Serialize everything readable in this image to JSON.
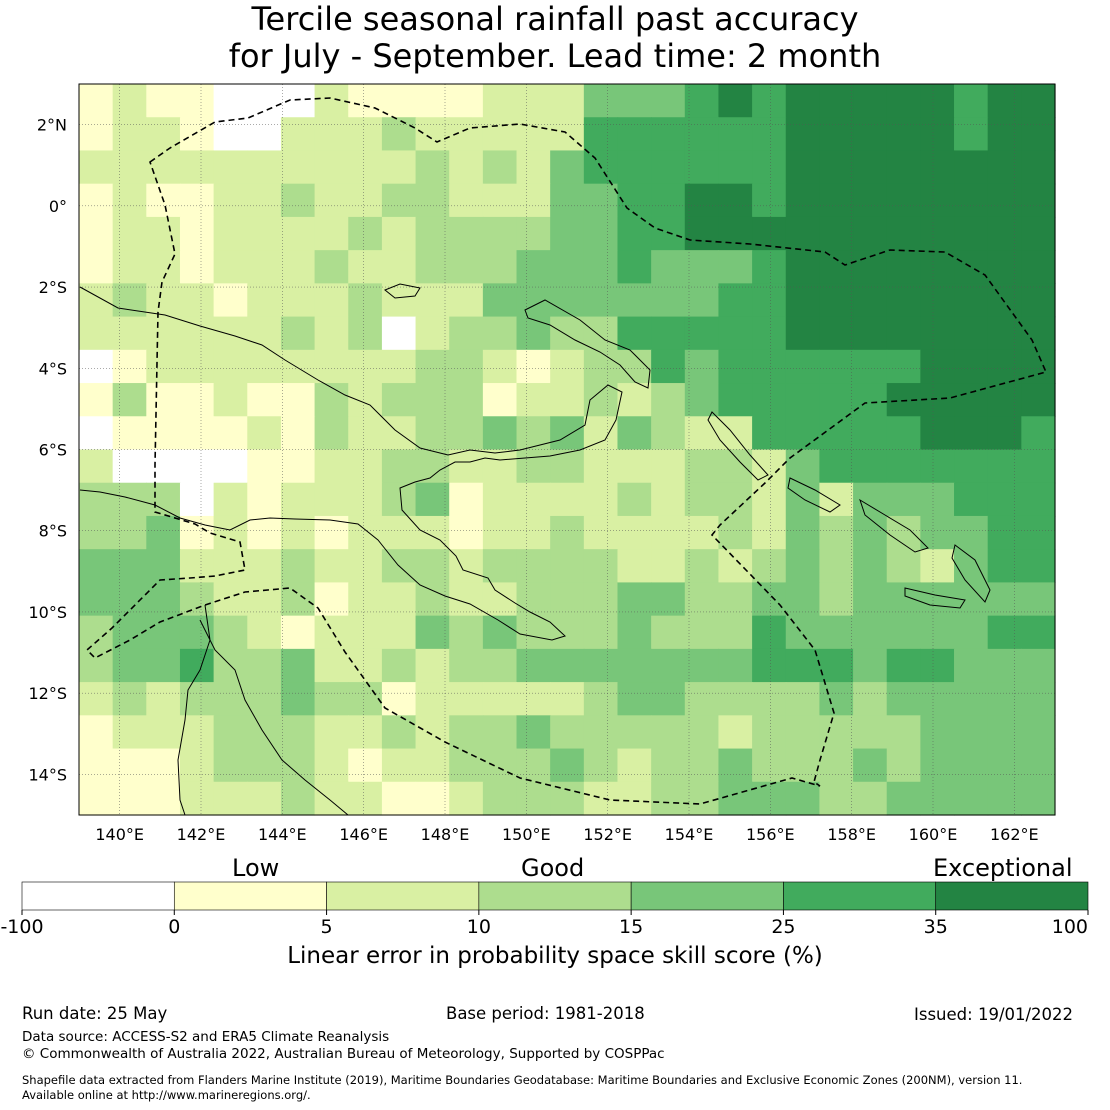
{
  "title": {
    "line1": "Tercile seasonal rainfall past accuracy",
    "line2": "for July - September. Lead time: 2 month"
  },
  "map": {
    "lat_range": [
      -15,
      3
    ],
    "lon_range": [
      139,
      163
    ],
    "lon_ticks": [
      "140°E",
      "142°E",
      "144°E",
      "146°E",
      "148°E",
      "150°E",
      "152°E",
      "154°E",
      "156°E",
      "158°E",
      "160°E",
      "162°E"
    ],
    "lat_ticks": [
      "2°N",
      "0°",
      "2°S",
      "4°S",
      "6°S",
      "8°S",
      "10°S",
      "12°S",
      "14°S"
    ],
    "grid_ncols": 29,
    "grid_nrows": 22,
    "skill_grid": [
      "12110002111122244456566666566",
      "12210022232222255555566666566",
      "22222222223232455555566666666",
      "12112232233222445566566666666",
      "12212222323333445566666666666",
      "12212223223334445444566666666",
      "23221222322244444445566666666",
      "22222232302334335555566666666",
      "01222222223321233545555556666",
      "13112113233312232345555566666",
      "01111213223343424322555556665",
      "20000112233223322233245555555",
      "33302122234122223233242444555",
      "33412121222122322223243434455",
      "44422232233233332232343432455",
      "44432231223223334433443444444",
      "34443212224343334333544444455",
      "34453342232334444444555455444",
      "23233343312222234433334344444",
      "12223332232334333332333334444",
      "11123332122333432334333434444",
      "11122232211233322334443344444"
    ],
    "colors": [
      "#ffffff",
      "#ffffcc",
      "#d9f0a3",
      "#addd8e",
      "#78c679",
      "#41ab5d",
      "#238443"
    ]
  },
  "colorbar": {
    "categories": [
      "Low",
      "Good",
      "Exceptional"
    ],
    "ticks": [
      "-100",
      "0",
      "5",
      "10",
      "15",
      "25",
      "35",
      "100"
    ],
    "label": "Linear error in probability space skill score (%)"
  },
  "footer": {
    "run_date": "Run date: 25 May",
    "base_period": "Base period: 1981-2018",
    "issued": "Issued: 19/01/2022",
    "data_source": "Data source: ACCESS-S2 and ERA5 Climate Reanalysis",
    "copyright": "© Commonwealth of Australia 2022, Australian Bureau of Meteorology, Supported by COSPPac",
    "shapefile_line1": "Shapefile data extracted from Flanders Marine Institute (2019), Maritime Boundaries Geodatabase: Maritime Boundaries and Exclusive Economic Zones (200NM), version 11.",
    "shapefile_line2": "Available online at http://www.marineregions.org/."
  }
}
